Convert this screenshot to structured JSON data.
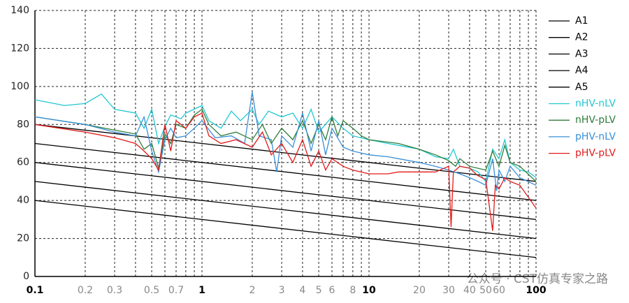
{
  "chart_data": {
    "type": "line",
    "xscale": "log",
    "grid": true,
    "legend": "right",
    "xlim": [
      0.1,
      100
    ],
    "ylim": [
      0,
      140
    ],
    "xticks": [
      0.1,
      0.2,
      0.3,
      0.5,
      0.7,
      1,
      2,
      3,
      4,
      5,
      6,
      8,
      10,
      20,
      30,
      40,
      50,
      60,
      100
    ],
    "xminor": [
      0.4,
      0.6,
      0.8,
      0.9,
      7,
      9,
      70,
      80,
      90
    ],
    "yticks": [
      0,
      20,
      40,
      60,
      80,
      100,
      120,
      140
    ],
    "watermark": "公众号 · CST仿真专家之路",
    "series": [
      {
        "name": "A1",
        "color": "#000000",
        "x": [
          0.1,
          100
        ],
        "values": [
          80,
          50
        ]
      },
      {
        "name": "A2",
        "color": "#000000",
        "x": [
          0.1,
          100
        ],
        "values": [
          70,
          40
        ]
      },
      {
        "name": "A3",
        "color": "#000000",
        "x": [
          0.1,
          100
        ],
        "values": [
          60,
          30
        ]
      },
      {
        "name": "A4",
        "color": "#000000",
        "x": [
          0.1,
          100
        ],
        "values": [
          50,
          20
        ]
      },
      {
        "name": "A5",
        "color": "#000000",
        "x": [
          0.1,
          100
        ],
        "values": [
          40,
          10
        ]
      },
      {
        "name": "nHV-nLV",
        "color": "#22c7d2",
        "x": [
          0.1,
          0.15,
          0.2,
          0.25,
          0.3,
          0.4,
          0.45,
          0.5,
          0.55,
          0.6,
          0.65,
          0.75,
          0.8,
          1,
          1.1,
          1.3,
          1.5,
          1.7,
          2,
          2.2,
          2.5,
          3,
          3.5,
          4,
          4.5,
          5,
          6,
          7,
          8,
          10,
          13,
          15,
          20,
          25,
          30,
          32,
          35,
          40,
          45,
          50,
          55,
          60,
          65,
          70,
          80,
          90,
          100
        ],
        "values": [
          93,
          90,
          91,
          96,
          88,
          86,
          78,
          88,
          70,
          79,
          85,
          83,
          86,
          90,
          82,
          78,
          87,
          82,
          88,
          80,
          87,
          84,
          86,
          78,
          88,
          76,
          84,
          78,
          74,
          72,
          70,
          69,
          67,
          63,
          62,
          67,
          58,
          57,
          55,
          50,
          67,
          62,
          72,
          60,
          56,
          55,
          52
        ]
      },
      {
        "name": "nHV-pLV",
        "color": "#2f7d3a",
        "x": [
          0.1,
          0.2,
          0.3,
          0.4,
          0.45,
          0.5,
          0.55,
          0.6,
          0.65,
          0.7,
          0.8,
          0.9,
          1,
          1.1,
          1.3,
          1.6,
          2,
          2.3,
          2.6,
          3,
          3.5,
          4,
          4.5,
          5,
          5.5,
          6,
          6.5,
          7,
          8,
          9,
          10,
          15,
          20,
          25,
          30,
          33,
          35,
          40,
          50,
          55,
          60,
          65,
          70,
          80,
          100
        ],
        "values": [
          84,
          80,
          77,
          75,
          67,
          70,
          57,
          75,
          70,
          80,
          78,
          85,
          88,
          80,
          74,
          76,
          72,
          80,
          70,
          78,
          72,
          82,
          70,
          80,
          72,
          84,
          74,
          82,
          78,
          74,
          72,
          70,
          67,
          64,
          61,
          58,
          62,
          58,
          56,
          66,
          58,
          69,
          60,
          58,
          50
        ]
      },
      {
        "name": "pHV-nLV",
        "color": "#3a8fd8",
        "x": [
          0.1,
          0.2,
          0.3,
          0.4,
          0.45,
          0.5,
          0.55,
          0.6,
          0.65,
          0.7,
          0.8,
          0.9,
          1,
          1.2,
          1.5,
          1.8,
          2,
          2.2,
          2.6,
          2.8,
          3,
          3.5,
          4,
          4.5,
          5,
          5.5,
          6,
          7,
          8,
          10,
          13,
          15,
          20,
          25,
          30,
          35,
          40,
          45,
          50,
          55,
          58,
          60,
          65,
          70,
          80,
          100
        ],
        "values": [
          84,
          80,
          76,
          74,
          84,
          66,
          55,
          72,
          78,
          73,
          74,
          78,
          82,
          73,
          74,
          70,
          97,
          74,
          72,
          55,
          74,
          68,
          86,
          66,
          82,
          64,
          78,
          68,
          66,
          64,
          63,
          62,
          60,
          58,
          56,
          54,
          52,
          50,
          48,
          62,
          45,
          56,
          50,
          58,
          52,
          48
        ]
      },
      {
        "name": "pHV-pLV",
        "color": "#e01b1b",
        "x": [
          0.1,
          0.2,
          0.3,
          0.4,
          0.45,
          0.5,
          0.55,
          0.6,
          0.65,
          0.7,
          0.8,
          0.9,
          1,
          1.1,
          1.3,
          1.6,
          2,
          2.3,
          2.6,
          3,
          3.5,
          4,
          4.5,
          5,
          5.5,
          6,
          7,
          8,
          10,
          13,
          15,
          20,
          25,
          30,
          31,
          32,
          35,
          40,
          45,
          50,
          55,
          57,
          60,
          65,
          70,
          80,
          100
        ],
        "values": [
          80,
          76,
          73,
          70,
          66,
          62,
          56,
          80,
          66,
          82,
          78,
          84,
          86,
          74,
          70,
          72,
          68,
          76,
          64,
          70,
          60,
          72,
          58,
          66,
          56,
          62,
          58,
          56,
          54,
          54,
          55,
          55,
          55,
          58,
          26,
          55,
          58,
          57,
          53,
          51,
          24,
          48,
          46,
          52,
          50,
          48,
          36
        ]
      }
    ]
  }
}
